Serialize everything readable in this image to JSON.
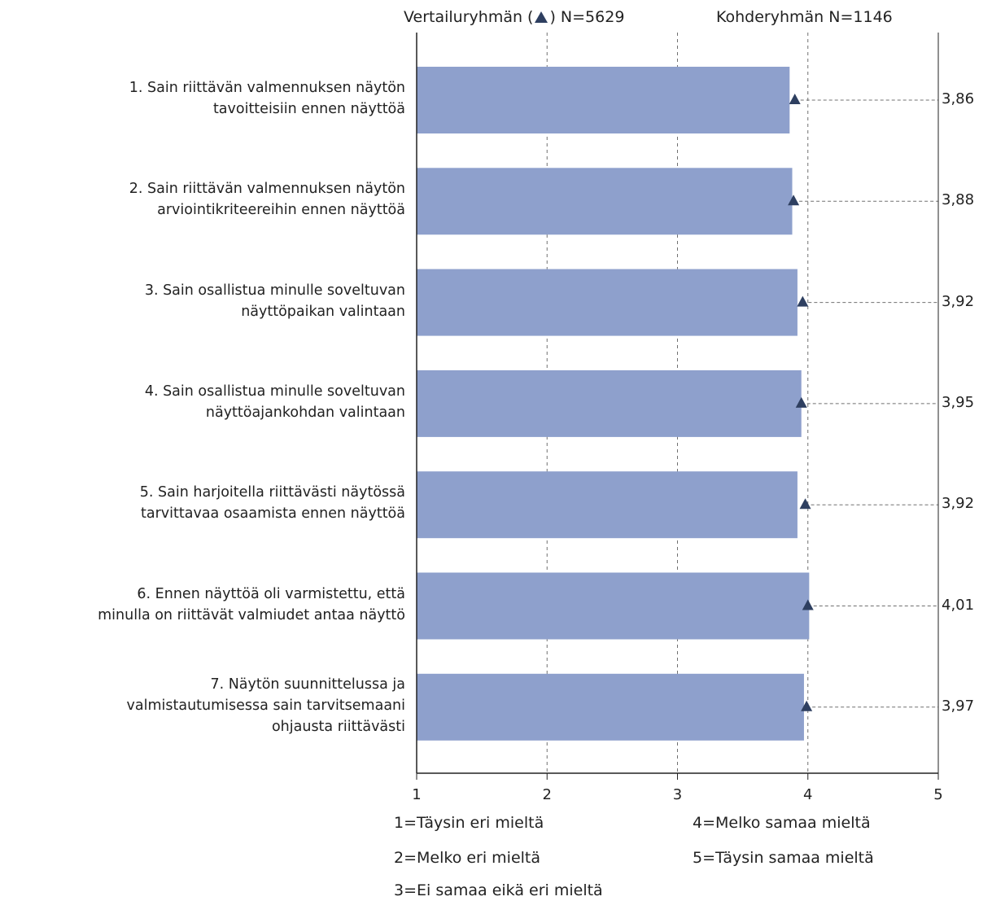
{
  "header": {
    "comparison_prefix": "Vertailuryhmän (",
    "comparison_suffix": ") N=5629",
    "target": "Kohderyhmän N=1146"
  },
  "colors": {
    "bar": "#8ea0cc",
    "marker": "#2e3f60",
    "grid": "#707070",
    "axis": "#222222"
  },
  "chart_data": {
    "type": "bar",
    "orientation": "horizontal",
    "categories": [
      [
        "1. Sain riittävän valmennuksen näytön",
        "tavoitteisiin ennen näyttöä"
      ],
      [
        "2. Sain riittävän valmennuksen näytön",
        "arviointikriteereihin ennen näyttöä"
      ],
      [
        "3. Sain osallistua minulle soveltuvan",
        "näyttöpaikan valintaan"
      ],
      [
        "4. Sain osallistua minulle soveltuvan",
        "näyttöajankohdan valintaan"
      ],
      [
        "5. Sain harjoitella riittävästi näytössä",
        "tarvittavaa osaamista ennen näyttöä"
      ],
      [
        "6. Ennen näyttöä oli varmistettu, että",
        "minulla on riittävät valmiudet antaa näyttö"
      ],
      [
        "7. Näytön suunnittelussa ja",
        "valmistautumisessa sain tarvitsemaani",
        "ohjausta riittävästi"
      ]
    ],
    "values": [
      3.86,
      3.88,
      3.92,
      3.95,
      3.92,
      4.01,
      3.97
    ],
    "value_labels": [
      "3,86",
      "3,88",
      "3,92",
      "3,95",
      "3,92",
      "4,01",
      "3,97"
    ],
    "comparison_values": [
      3.9,
      3.89,
      3.96,
      3.95,
      3.98,
      4.0,
      3.99
    ],
    "xlim": [
      1,
      5
    ],
    "xticks": [
      "1",
      "2",
      "3",
      "4",
      "5"
    ],
    "grid": "vertical dashed at 2, 3, 4",
    "legend": [
      "1=Täysin eri mieltä",
      "2=Melko eri mieltä",
      "3=Ei samaa eikä eri mieltä",
      "4=Melko samaa mieltä",
      "5=Täysin samaa mieltä"
    ]
  }
}
